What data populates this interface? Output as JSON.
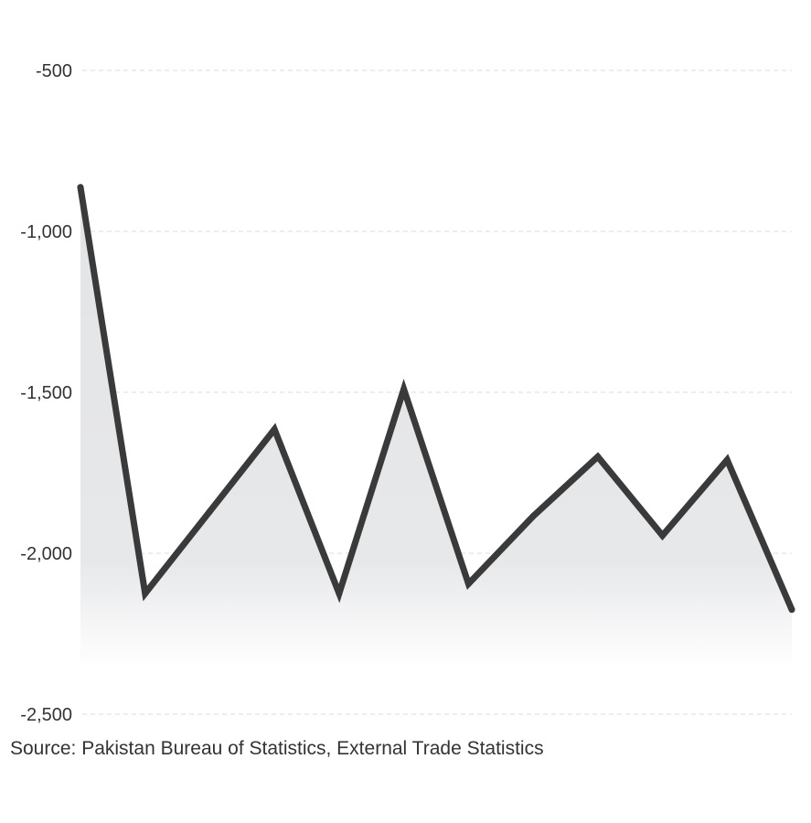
{
  "chart_data": {
    "type": "area",
    "title": "",
    "xlabel": "",
    "ylabel": "",
    "ylim": [
      -2500,
      -500
    ],
    "yticks": [
      -500,
      -1000,
      -1500,
      -2000,
      -2500
    ],
    "ytick_labels": [
      "-500",
      "-1,000",
      "-1,500",
      "-2,000",
      "-2,500"
    ],
    "grid": "horizontal dashed",
    "legend": "none",
    "series": [
      {
        "values": [
          -863,
          -2125,
          -1870,
          -1615,
          -2125,
          -1490,
          -2095,
          -1885,
          -1700,
          -1945,
          -1710,
          -2175
        ]
      }
    ],
    "colors": {
      "line": "#3a3a3a",
      "area_top": "#e3e4e6",
      "area_bottom": "#ffffff",
      "grid": "#dcdcdc",
      "text": "#333333"
    }
  },
  "source": "Source: Pakistan Bureau of Statistics, External Trade Statistics"
}
